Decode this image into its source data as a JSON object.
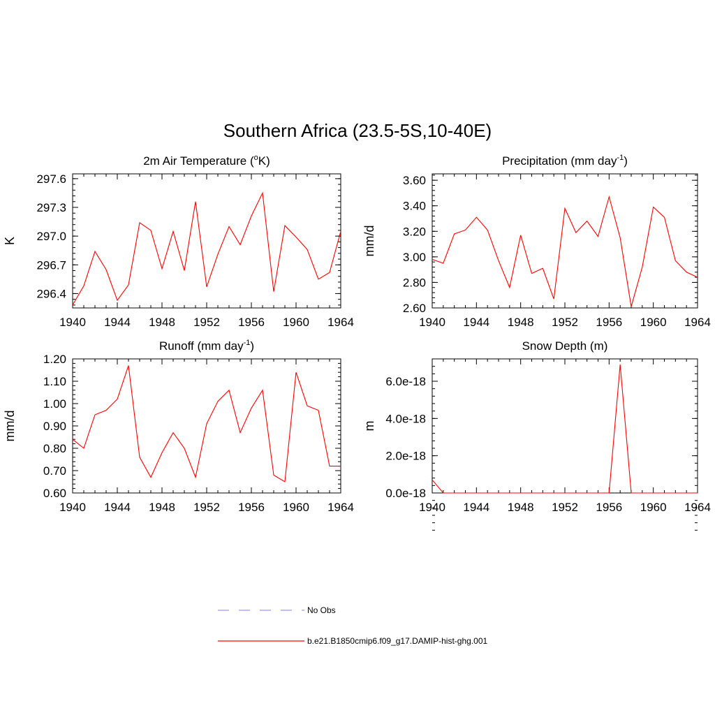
{
  "title": "Southern Africa (23.5-5S,10-40E)",
  "colors": {
    "model_line": "#ff0000",
    "obs_line": "#9999ff",
    "axis": "#000000"
  },
  "legend": {
    "placement": "bottom-center",
    "entries": [
      {
        "label": "No Obs",
        "style": "dashed",
        "color": "#9999ff"
      },
      {
        "label": "b.e21.B1850cmip6.f09_g17.DAMIP-hist-ghg.001",
        "style": "solid",
        "color": "#ff0000"
      }
    ]
  },
  "chart_data": [
    {
      "type": "line",
      "title_parts": [
        "2m Air Temperature (",
        "o",
        "K)"
      ],
      "ylabel": "K",
      "xlim": [
        1940,
        1964
      ],
      "ylim": [
        296.25,
        297.65
      ],
      "x_ticks": [
        "1940",
        "1944",
        "1948",
        "1952",
        "1956",
        "1960",
        "1964"
      ],
      "y_ticks": [
        "296.4",
        "296.7",
        "297.0",
        "297.3",
        "297.6"
      ],
      "y_tick_values": [
        296.4,
        296.7,
        297.0,
        297.3,
        297.6
      ],
      "grid": false,
      "series": [
        {
          "x": [
            1940,
            1941,
            1942,
            1943,
            1944,
            1945,
            1946,
            1947,
            1948,
            1949,
            1950,
            1951,
            1952,
            1953,
            1954,
            1955,
            1956,
            1957,
            1958,
            1959,
            1960,
            1961,
            1962,
            1963,
            1964
          ],
          "values": [
            296.28,
            296.48,
            296.84,
            296.65,
            296.33,
            296.49,
            297.14,
            297.06,
            296.66,
            297.05,
            296.64,
            297.36,
            296.47,
            296.81,
            297.1,
            296.91,
            297.21,
            297.45,
            296.42,
            297.11,
            296.99,
            296.86,
            296.55,
            296.62,
            297.05
          ]
        }
      ]
    },
    {
      "type": "line",
      "title_parts": [
        "Precipitation (mm day",
        "-1",
        ")"
      ],
      "ylabel": "mm/d",
      "xlim": [
        1940,
        1964
      ],
      "ylim": [
        2.6,
        3.65
      ],
      "x_ticks": [
        "1940",
        "1944",
        "1948",
        "1952",
        "1956",
        "1960",
        "1964"
      ],
      "y_ticks": [
        "2.60",
        "2.80",
        "3.00",
        "3.20",
        "3.40",
        "3.60"
      ],
      "y_tick_values": [
        2.6,
        2.8,
        3.0,
        3.2,
        3.4,
        3.6
      ],
      "grid": false,
      "series": [
        {
          "x": [
            1940,
            1941,
            1942,
            1943,
            1944,
            1945,
            1946,
            1947,
            1948,
            1949,
            1950,
            1951,
            1952,
            1953,
            1954,
            1955,
            1956,
            1957,
            1958,
            1959,
            1960,
            1961,
            1962,
            1963,
            1964
          ],
          "values": [
            2.98,
            2.95,
            3.18,
            3.21,
            3.31,
            3.21,
            2.97,
            2.76,
            3.17,
            2.87,
            2.91,
            2.67,
            3.38,
            3.19,
            3.28,
            3.16,
            3.47,
            3.15,
            2.61,
            2.92,
            3.39,
            3.31,
            2.97,
            2.88,
            2.84
          ]
        }
      ]
    },
    {
      "type": "line",
      "title_parts": [
        "Runoff (mm day",
        "-1",
        ")"
      ],
      "ylabel": "mm/d",
      "xlim": [
        1940,
        1964
      ],
      "ylim": [
        0.6,
        1.2
      ],
      "x_ticks": [
        "1940",
        "1944",
        "1948",
        "1952",
        "1956",
        "1960",
        "1964"
      ],
      "y_ticks": [
        "0.60",
        "0.70",
        "0.80",
        "0.90",
        "1.00",
        "1.10",
        "1.20"
      ],
      "y_tick_values": [
        0.6,
        0.7,
        0.8,
        0.9,
        1.0,
        1.1,
        1.2
      ],
      "grid": false,
      "series": [
        {
          "x": [
            1940,
            1941,
            1942,
            1943,
            1944,
            1945,
            1946,
            1947,
            1948,
            1949,
            1950,
            1951,
            1952,
            1953,
            1954,
            1955,
            1956,
            1957,
            1958,
            1959,
            1960,
            1961,
            1962,
            1963,
            1964
          ],
          "values": [
            0.84,
            0.8,
            0.95,
            0.97,
            1.02,
            1.17,
            0.76,
            0.67,
            0.78,
            0.87,
            0.8,
            0.67,
            0.91,
            1.01,
            1.06,
            0.87,
            0.98,
            1.06,
            0.68,
            0.65,
            1.14,
            0.99,
            0.97,
            0.72,
            0.72
          ]
        }
      ]
    },
    {
      "type": "line",
      "title_parts": [
        "Snow Depth (m)"
      ],
      "ylabel": "m",
      "xlim": [
        1940,
        1964
      ],
      "ylim": [
        0,
        7.2e-18
      ],
      "x_ticks": [
        "1940",
        "1944",
        "1948",
        "1952",
        "1956",
        "1960",
        "1964"
      ],
      "y_ticks": [
        "0.0e-18",
        "2.0e-18",
        "4.0e-18",
        "6.0e-18"
      ],
      "y_tick_values": [
        0,
        2e-18,
        4e-18,
        6e-18
      ],
      "grid": false,
      "series": [
        {
          "x": [
            1940,
            1941,
            1942,
            1943,
            1944,
            1945,
            1946,
            1947,
            1948,
            1949,
            1950,
            1951,
            1952,
            1953,
            1954,
            1955,
            1956,
            1957,
            1958,
            1959,
            1960,
            1961,
            1962,
            1963,
            1964
          ],
          "values": [
            7e-19,
            0,
            0,
            0,
            0,
            0,
            0,
            0,
            0,
            0,
            0,
            0,
            0,
            0,
            0,
            0,
            0,
            6.9e-18,
            0,
            0,
            0,
            0,
            0,
            0,
            0
          ]
        }
      ]
    }
  ]
}
